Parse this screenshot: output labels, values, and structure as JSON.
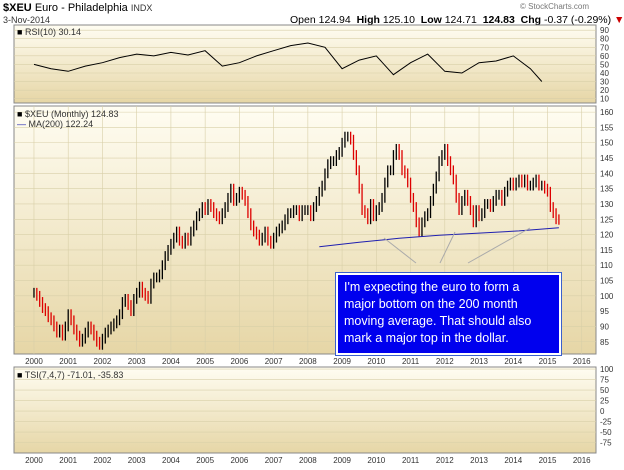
{
  "header": {
    "symbol": "$XEU",
    "name": "Euro - Philadelphia",
    "exchange": "INDX",
    "date": "3-Nov-2014",
    "open_label": "Open",
    "open": "124.94",
    "high_label": "High",
    "high": "125.10",
    "low_label": "Low",
    "low": "124.71",
    "close": "124.83",
    "chg_label": "Chg",
    "chg": "-0.37 (-0.29%)",
    "watermark": "© StockCharts.com"
  },
  "colors": {
    "up": "#000000",
    "down": "#dd0000",
    "ma": "#1f1fb0",
    "panel_bg_top": "#fffdf0",
    "panel_bg_bottom": "#e8d8a8",
    "callout_bg": "#0000ee",
    "chg_color": "#cc0000"
  },
  "annotation": {
    "lines": [
      "I'm expecting the euro to form a",
      "major bottom on the 200 month",
      "moving average. That should also",
      "mark a major top in the dollar."
    ]
  },
  "chart_data": [
    {
      "type": "line",
      "panel": "RSI",
      "legend": "RSI(10) 30.14",
      "y_ticks": [
        10,
        20,
        30,
        40,
        50,
        60,
        70,
        80,
        90
      ],
      "ylim": [
        5,
        96
      ],
      "x": [
        "2000-01",
        "2000-07",
        "2001-01",
        "2001-07",
        "2002-01",
        "2002-07",
        "2003-01",
        "2003-07",
        "2004-01",
        "2004-07",
        "2005-01",
        "2005-07",
        "2006-01",
        "2006-07",
        "2007-01",
        "2007-07",
        "2008-01",
        "2008-07",
        "2009-01",
        "2009-07",
        "2010-01",
        "2010-07",
        "2011-01",
        "2011-07",
        "2012-01",
        "2012-07",
        "2013-01",
        "2013-07",
        "2014-01",
        "2014-07",
        "2014-11"
      ],
      "values": [
        50,
        45,
        42,
        48,
        52,
        58,
        62,
        60,
        64,
        61,
        66,
        48,
        52,
        60,
        66,
        72,
        75,
        70,
        45,
        55,
        60,
        38,
        52,
        62,
        42,
        40,
        52,
        54,
        60,
        45,
        30.14
      ]
    },
    {
      "type": "ohlc",
      "panel": "Price",
      "series_name": "$XEU (Monthly)",
      "last": 124.83,
      "ma_name": "MA(200)",
      "ma_last": 122.24,
      "y_ticks": [
        85,
        90,
        95,
        100,
        105,
        110,
        115,
        120,
        125,
        130,
        135,
        140,
        145,
        150,
        155,
        160
      ],
      "ylim": [
        81,
        162
      ],
      "x_axis_labels": [
        "2000",
        "2001",
        "2002",
        "2003",
        "2004",
        "2005",
        "2006",
        "2007",
        "2008",
        "2009",
        "2010",
        "2011",
        "2012",
        "2013",
        "2014",
        "2015",
        "2016"
      ],
      "xlim": [
        "1999-06",
        "2016-06"
      ],
      "closes": [
        101,
        100,
        98,
        96,
        95,
        93,
        92,
        90,
        88,
        89,
        87,
        90,
        94,
        92,
        89,
        87,
        85,
        86,
        88,
        90,
        89,
        87,
        85,
        84,
        86,
        88,
        89,
        90,
        91,
        92,
        94,
        98,
        99,
        97,
        95,
        99,
        101,
        103,
        101,
        100,
        99,
        104,
        106,
        106,
        107,
        110,
        113,
        115,
        117,
        119,
        121,
        118,
        117,
        119,
        118,
        121,
        123,
        126,
        127,
        129,
        128,
        130,
        129,
        127,
        126,
        125,
        127,
        129,
        132,
        135,
        131,
        132,
        134,
        133,
        131,
        127,
        123,
        121,
        120,
        118,
        119,
        121,
        118,
        117,
        119,
        121,
        122,
        123,
        125,
        127,
        127,
        128,
        128,
        126,
        128,
        128,
        128,
        126,
        129,
        131,
        134,
        136,
        140,
        143,
        144,
        144,
        146,
        147,
        150,
        152,
        152,
        151,
        146,
        141,
        135,
        128,
        127,
        125,
        130,
        126,
        128,
        129,
        132,
        137,
        141,
        141,
        146,
        148,
        146,
        141,
        140,
        137,
        132,
        129,
        124,
        121,
        124,
        126,
        127,
        131,
        135,
        139,
        144,
        146,
        148,
        144,
        141,
        138,
        132,
        128,
        131,
        133,
        131,
        128,
        124,
        128,
        126,
        127,
        130,
        130,
        129,
        131,
        133,
        133,
        131,
        134,
        136,
        137,
        136,
        137,
        138,
        137,
        138,
        136,
        136,
        137,
        138,
        136,
        136,
        135,
        134,
        129,
        127,
        125,
        124.83
      ],
      "ma_start_index": 100,
      "ma_values": [
        116,
        117.5,
        118.8,
        119.8,
        120.5,
        121.2,
        122.24
      ]
    },
    {
      "type": "line",
      "panel": "TSI",
      "legend": "TSI(7,4,7) -71.01, -35.83",
      "y_ticks": [
        100,
        75,
        50,
        25,
        0,
        -25,
        -50,
        -75
      ],
      "ylim": [
        -100,
        105
      ],
      "tsi": -71.01,
      "signal": -35.83
    }
  ]
}
